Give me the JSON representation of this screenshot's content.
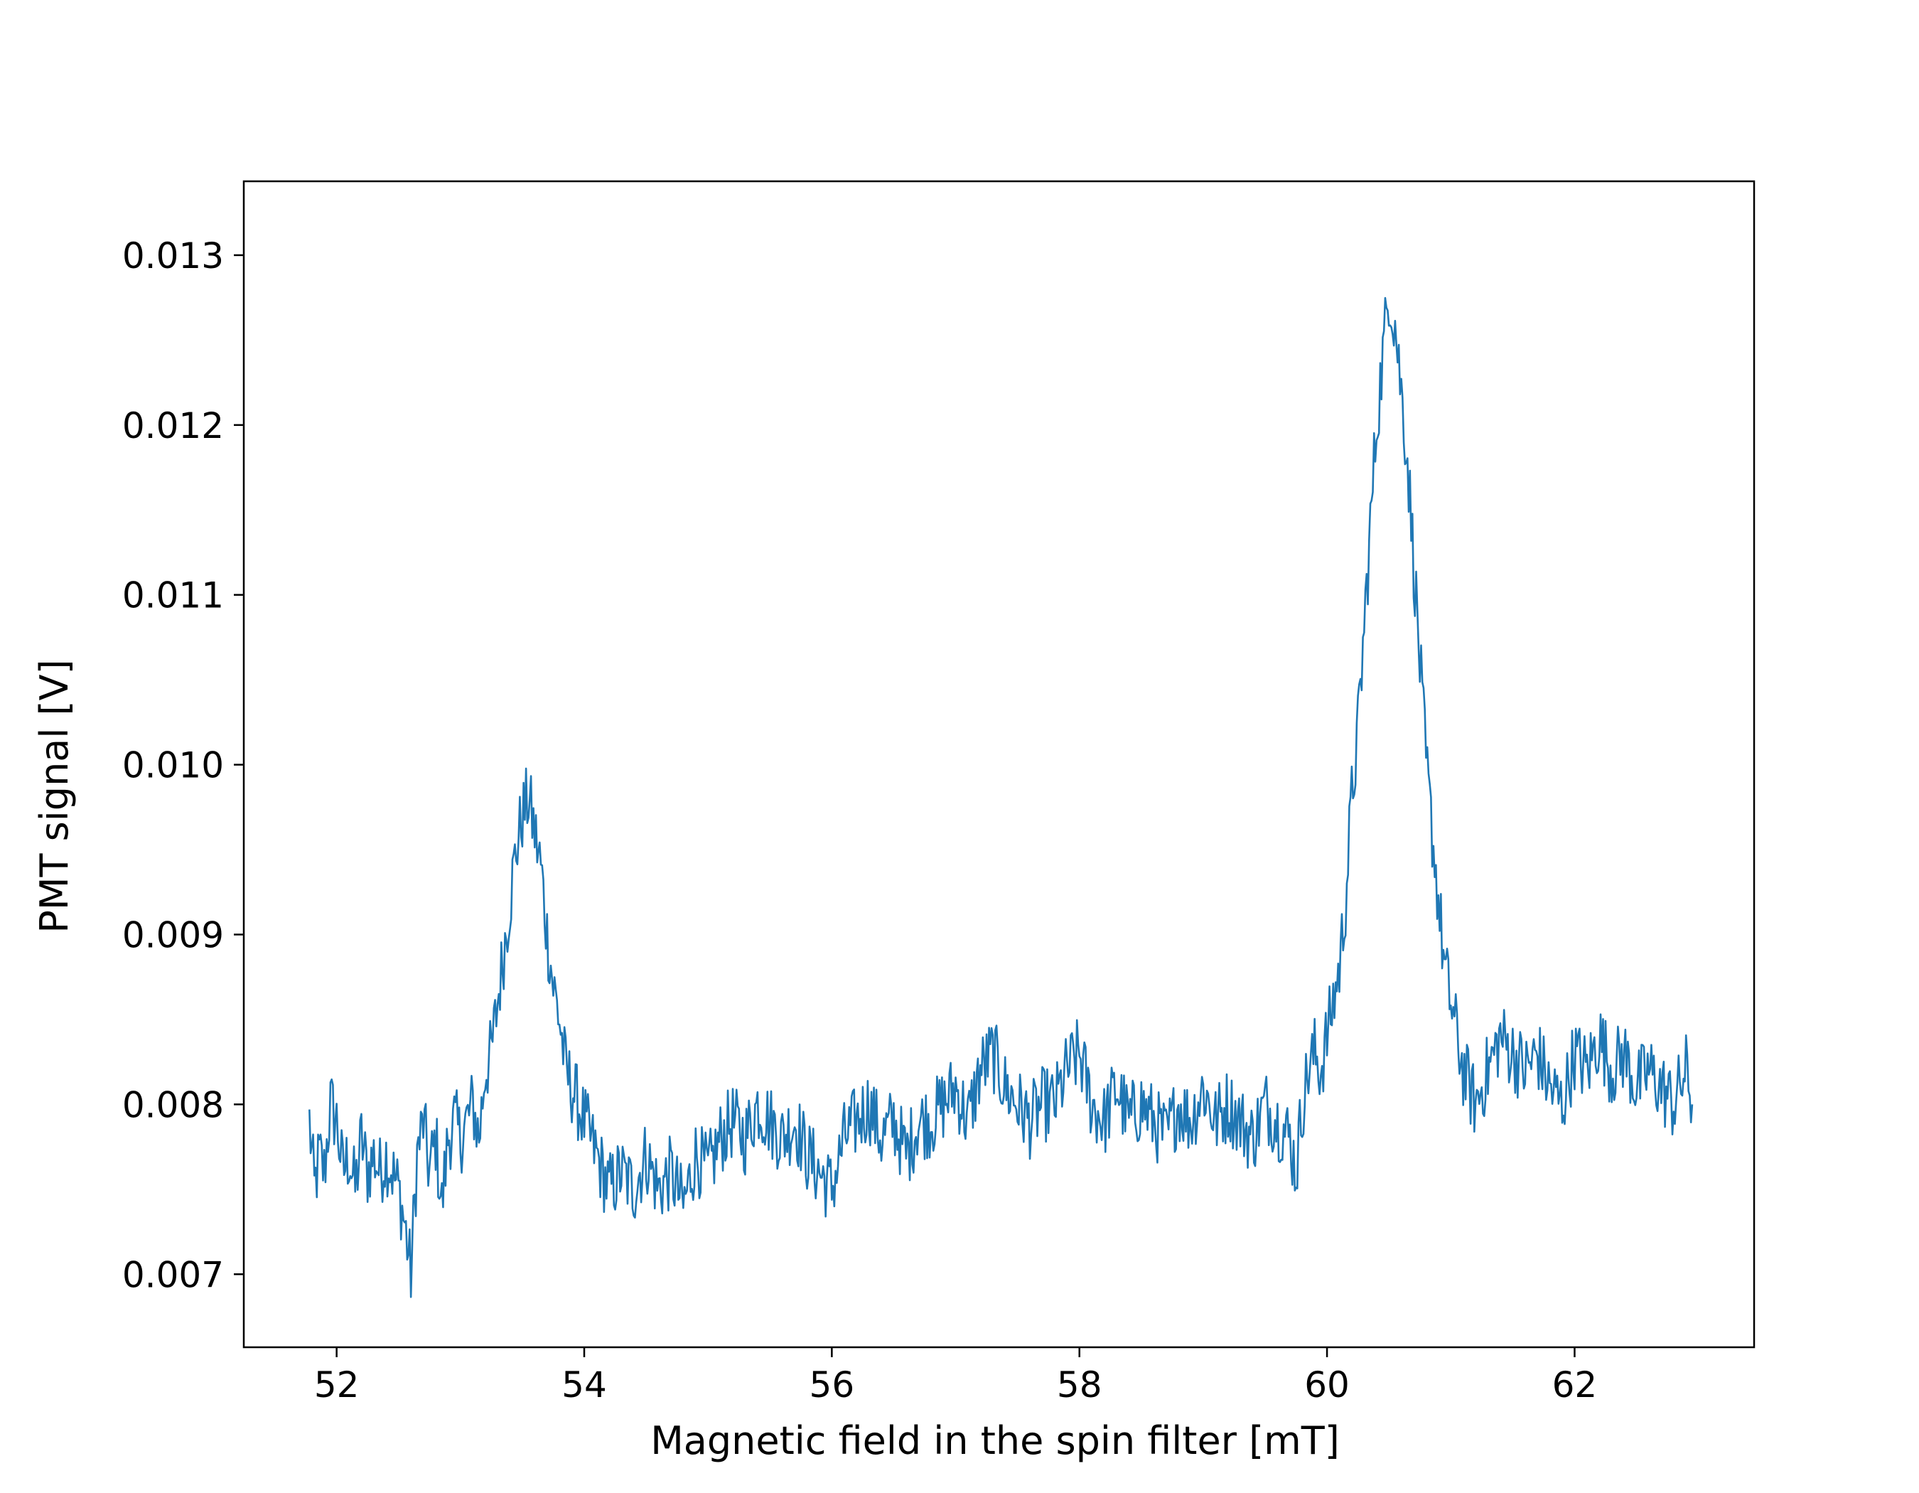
{
  "chart_data": {
    "type": "line",
    "title": "",
    "xlabel": "Magnetic field in the spin filter [mT]",
    "ylabel": "PMT signal [V]",
    "xlim": [
      51.25,
      63.45
    ],
    "ylim": [
      0.00657,
      0.013435
    ],
    "xticks": [
      52,
      54,
      56,
      58,
      60,
      62
    ],
    "yticks": [
      0.007,
      0.008,
      0.009,
      0.01,
      0.011,
      0.012,
      0.013
    ],
    "xtick_labels": [
      "52",
      "54",
      "56",
      "58",
      "60",
      "62"
    ],
    "ytick_labels": [
      "0.007",
      "0.008",
      "0.009",
      "0.010",
      "0.011",
      "0.012",
      "0.013"
    ],
    "grid": false,
    "legend": "none",
    "color": "#1f77b4",
    "series": [
      {
        "x": [
          51.78,
          51.82,
          51.86,
          51.9,
          51.95,
          52.0,
          52.05,
          52.1,
          52.15,
          52.2,
          52.25,
          52.3,
          52.35,
          52.4,
          52.45,
          52.5,
          52.55,
          52.6,
          52.65,
          52.7,
          52.75,
          52.8,
          52.85,
          52.9,
          52.95,
          53.0,
          53.05,
          53.1,
          53.15,
          53.2,
          53.25,
          53.3,
          53.35,
          53.4,
          53.45,
          53.5,
          53.55,
          53.6,
          53.65,
          53.7,
          53.75,
          53.8,
          53.85,
          53.9,
          53.95,
          54.0,
          54.05,
          54.1,
          54.15,
          54.2,
          54.3,
          54.4,
          54.5,
          54.6,
          54.7,
          54.8,
          54.9,
          55.0,
          55.1,
          55.2,
          55.3,
          55.4,
          55.5,
          55.6,
          55.7,
          55.8,
          55.9,
          56.0,
          56.1,
          56.2,
          56.3,
          56.4,
          56.5,
          56.6,
          56.7,
          56.8,
          56.9,
          57.0,
          57.1,
          57.2,
          57.3,
          57.4,
          57.5,
          57.6,
          57.7,
          57.8,
          57.9,
          58.0,
          58.1,
          58.2,
          58.3,
          58.4,
          58.5,
          58.6,
          58.7,
          58.8,
          58.9,
          59.0,
          59.1,
          59.2,
          59.3,
          59.4,
          59.5,
          59.6,
          59.7,
          59.75,
          59.8,
          59.85,
          59.9,
          59.95,
          60.0,
          60.05,
          60.1,
          60.15,
          60.2,
          60.25,
          60.3,
          60.35,
          60.4,
          60.45,
          60.5,
          60.55,
          60.6,
          60.65,
          60.7,
          60.75,
          60.8,
          60.85,
          60.9,
          60.95,
          61.0,
          61.05,
          61.1,
          61.15,
          61.2,
          61.3,
          61.4,
          61.5,
          61.6,
          61.7,
          61.8,
          61.9,
          62.0,
          62.1,
          62.2,
          62.3,
          62.4,
          62.5,
          62.6,
          62.7,
          62.8,
          62.9,
          62.95
        ],
        "y": [
          0.0079,
          0.0075,
          0.0077,
          0.0076,
          0.008,
          0.0079,
          0.0076,
          0.0077,
          0.0075,
          0.0078,
          0.0076,
          0.0077,
          0.0076,
          0.0077,
          0.0076,
          0.0075,
          0.0073,
          0.007,
          0.0077,
          0.0079,
          0.0076,
          0.0078,
          0.0074,
          0.0078,
          0.0079,
          0.0078,
          0.0079,
          0.008,
          0.0078,
          0.0082,
          0.0083,
          0.0086,
          0.0089,
          0.0092,
          0.0095,
          0.0097,
          0.0098,
          0.0096,
          0.0094,
          0.009,
          0.0087,
          0.0085,
          0.0082,
          0.0081,
          0.008,
          0.0079,
          0.0078,
          0.0077,
          0.0076,
          0.0075,
          0.0076,
          0.0075,
          0.0077,
          0.0075,
          0.0076,
          0.0074,
          0.0077,
          0.0076,
          0.0078,
          0.0079,
          0.0078,
          0.008,
          0.0079,
          0.0078,
          0.0079,
          0.0077,
          0.0076,
          0.0075,
          0.0078,
          0.0079,
          0.008,
          0.0078,
          0.0079,
          0.0077,
          0.0079,
          0.0079,
          0.008,
          0.0081,
          0.0079,
          0.0082,
          0.0083,
          0.0081,
          0.008,
          0.0079,
          0.008,
          0.008,
          0.0082,
          0.0083,
          0.008,
          0.0079,
          0.0081,
          0.0079,
          0.008,
          0.0079,
          0.0078,
          0.008,
          0.0079,
          0.0081,
          0.0079,
          0.008,
          0.0079,
          0.0078,
          0.008,
          0.0079,
          0.0078,
          0.0076,
          0.008,
          0.0082,
          0.0083,
          0.0082,
          0.0084,
          0.0086,
          0.0088,
          0.0092,
          0.0098,
          0.0102,
          0.0108,
          0.0114,
          0.012,
          0.0124,
          0.0128,
          0.0126,
          0.0122,
          0.0118,
          0.0112,
          0.0106,
          0.01,
          0.0096,
          0.0092,
          0.0088,
          0.0086,
          0.0084,
          0.0082,
          0.0081,
          0.008,
          0.0082,
          0.0084,
          0.0083,
          0.0082,
          0.0083,
          0.0081,
          0.008,
          0.0083,
          0.0082,
          0.0084,
          0.0082,
          0.0083,
          0.0081,
          0.0082,
          0.0081,
          0.008,
          0.0082,
          0.008
        ]
      }
    ]
  }
}
